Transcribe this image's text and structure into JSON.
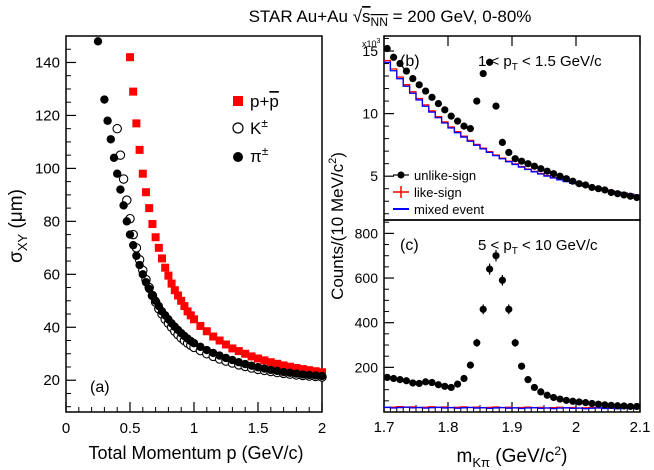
{
  "figure": {
    "title": "STAR  Au+Au √s_NN = 200 GeV, 0-80%",
    "title_parts": {
      "prefix": "STAR  Au+Au ",
      "sqrt": "s",
      "sub": "NN",
      "suffix": " = 200 GeV, 0-80%"
    }
  },
  "chart_data": [
    {
      "panel": "(a)",
      "type": "scatter",
      "xlabel": "Total Momentum p (GeV/c)",
      "ylabel": "σ_XY (μm)",
      "xlim": [
        0,
        2
      ],
      "ylim": [
        8,
        150
      ],
      "xticks": [
        "0",
        "0.5",
        "1",
        "1.5",
        "2"
      ],
      "yticks": [
        "20",
        "40",
        "60",
        "80",
        "100",
        "120",
        "140"
      ],
      "legend": [
        "p+p̄",
        "K±",
        "π±"
      ],
      "legend_position": "top-right",
      "series": [
        {
          "name": "p+p̄",
          "marker": "filled-square",
          "color": "#ff0000",
          "x": [
            0.5,
            0.525,
            0.55,
            0.575,
            0.6,
            0.625,
            0.65,
            0.675,
            0.7,
            0.725,
            0.75,
            0.775,
            0.8,
            0.825,
            0.85,
            0.875,
            0.9,
            0.925,
            0.95,
            0.975,
            1.0,
            1.05,
            1.1,
            1.15,
            1.2,
            1.25,
            1.3,
            1.35,
            1.4,
            1.45,
            1.5,
            1.55,
            1.6,
            1.65,
            1.7,
            1.75,
            1.8,
            1.85,
            1.9,
            1.95,
            2.0
          ],
          "y": [
            142,
            129,
            117,
            107,
            98,
            91,
            85,
            79,
            74,
            70,
            66,
            62.5,
            59.5,
            56.5,
            54,
            52,
            50,
            48,
            46,
            44.5,
            43,
            40.5,
            38.5,
            36.5,
            35,
            33.5,
            32,
            31,
            30,
            29,
            28.2,
            27.5,
            26.8,
            26.2,
            25.6,
            25.1,
            24.6,
            24.2,
            23.8,
            23.4,
            23
          ]
        },
        {
          "name": "K±",
          "marker": "open-circle",
          "color": "#000000",
          "x": [
            0.4,
            0.425,
            0.45,
            0.475,
            0.5,
            0.525,
            0.55,
            0.575,
            0.6,
            0.625,
            0.65,
            0.675,
            0.7,
            0.725,
            0.75,
            0.775,
            0.8,
            0.825,
            0.85,
            0.875,
            0.9,
            0.925,
            0.95,
            0.975,
            1.0,
            1.05,
            1.1,
            1.15,
            1.2,
            1.25,
            1.3,
            1.35,
            1.4,
            1.45,
            1.5,
            1.55,
            1.6,
            1.65,
            1.7,
            1.75,
            1.8,
            1.85,
            1.9,
            1.95,
            2.0
          ],
          "y": [
            115,
            105,
            96,
            88,
            81,
            75,
            70,
            65.5,
            61.5,
            58,
            55,
            52,
            49.5,
            47,
            45,
            43,
            41.5,
            40,
            38.5,
            37.2,
            36,
            35,
            34,
            33.2,
            32.4,
            31.2,
            30,
            29,
            28,
            27.2,
            26.5,
            25.8,
            25.2,
            24.6,
            24.1,
            23.7,
            23.3,
            22.9,
            22.6,
            22.3,
            22,
            21.8,
            21.6,
            21.4,
            21.2
          ]
        },
        {
          "name": "π±",
          "marker": "filled-circle",
          "color": "#000000",
          "x": [
            0.25,
            0.3,
            0.325,
            0.35,
            0.375,
            0.4,
            0.425,
            0.45,
            0.475,
            0.5,
            0.525,
            0.55,
            0.575,
            0.6,
            0.625,
            0.65,
            0.675,
            0.7,
            0.725,
            0.75,
            0.775,
            0.8,
            0.825,
            0.85,
            0.875,
            0.9,
            0.925,
            0.95,
            0.975,
            1.0,
            1.05,
            1.1,
            1.15,
            1.2,
            1.25,
            1.3,
            1.35,
            1.4,
            1.45,
            1.5,
            1.55,
            1.6,
            1.65,
            1.7,
            1.75,
            1.8,
            1.85,
            1.9,
            1.95,
            2.0
          ],
          "y": [
            148,
            126,
            118,
            111,
            104,
            98,
            92,
            86,
            80,
            75,
            71,
            67,
            63.5,
            60,
            57,
            54.5,
            52,
            50,
            48,
            46,
            44.5,
            43,
            41.5,
            40.2,
            39,
            37.8,
            36.7,
            35.7,
            34.8,
            34,
            32.6,
            31.4,
            30.3,
            29.3,
            28.4,
            27.6,
            26.8,
            26.1,
            25.5,
            24.9,
            24.4,
            23.9,
            23.5,
            23.1,
            22.8,
            22.5,
            22.2,
            22,
            21.8,
            21.6
          ]
        }
      ]
    },
    {
      "panel": "(b)",
      "type": "scatter",
      "annotation": "1 < p_T < 1.5 GeV/c",
      "y_multiplier": "x10^3",
      "ylabel": "Counts/(10 MeV/c²)",
      "xlim": [
        1.7,
        2.1
      ],
      "ylim": [
        1.5,
        16.2
      ],
      "yticks": [
        "5",
        "10",
        "15"
      ],
      "legend": [
        "unlike-sign",
        "like-sign",
        "mixed event"
      ],
      "legend_position": "bottom-left",
      "series": [
        {
          "name": "unlike-sign",
          "marker": "filled-circle",
          "color": "#000000",
          "x": [
            1.705,
            1.715,
            1.725,
            1.735,
            1.745,
            1.755,
            1.765,
            1.775,
            1.785,
            1.795,
            1.805,
            1.815,
            1.825,
            1.835,
            1.845,
            1.855,
            1.865,
            1.875,
            1.885,
            1.895,
            1.905,
            1.915,
            1.925,
            1.935,
            1.945,
            1.955,
            1.965,
            1.975,
            1.985,
            1.995,
            2.005,
            2.015,
            2.025,
            2.035,
            2.045,
            2.055,
            2.065,
            2.075,
            2.085,
            2.095
          ],
          "y": [
            15.2,
            14.5,
            14.0,
            13.4,
            12.8,
            12.3,
            11.8,
            11.3,
            10.8,
            10.3,
            9.8,
            9.4,
            9.0,
            8.8,
            11.0,
            13.2,
            14.1,
            10.6,
            7.7,
            6.9,
            6.4,
            6.2,
            6.0,
            5.8,
            5.6,
            5.4,
            5.2,
            5.0,
            4.8,
            4.6,
            4.4,
            4.3,
            4.1,
            4.0,
            3.9,
            3.7,
            3.6,
            3.5,
            3.4,
            3.3
          ]
        },
        {
          "name": "like-sign",
          "marker": "step",
          "color": "#ff0000",
          "x": [
            1.7,
            2.1
          ],
          "y": [
            14.6,
            3.2
          ]
        },
        {
          "name": "mixed event",
          "marker": "step",
          "color": "#0000ff",
          "x": [
            1.7,
            2.1
          ],
          "y": [
            14.3,
            3.2
          ]
        }
      ]
    },
    {
      "panel": "(c)",
      "type": "scatter",
      "annotation": "5 < p_T < 10 GeV/c",
      "xlabel": "m_Kπ (GeV/c²)",
      "xlim": [
        1.7,
        2.1
      ],
      "ylim": [
        0,
        860
      ],
      "xticks": [
        "1.7",
        "1.8",
        "1.9",
        "2",
        "2.1"
      ],
      "yticks": [
        "200",
        "400",
        "600",
        "800"
      ],
      "series": [
        {
          "name": "unlike-sign",
          "marker": "filled-circle",
          "color": "#000000",
          "x": [
            1.705,
            1.715,
            1.725,
            1.735,
            1.745,
            1.755,
            1.765,
            1.775,
            1.785,
            1.795,
            1.805,
            1.815,
            1.825,
            1.835,
            1.845,
            1.855,
            1.865,
            1.875,
            1.885,
            1.895,
            1.905,
            1.915,
            1.925,
            1.935,
            1.945,
            1.955,
            1.965,
            1.975,
            1.985,
            1.995,
            2.005,
            2.015,
            2.025,
            2.035,
            2.045,
            2.055,
            2.065,
            2.075,
            2.085,
            2.095
          ],
          "y": [
            155,
            150,
            145,
            140,
            130,
            128,
            135,
            132,
            122,
            115,
            110,
            125,
            150,
            210,
            310,
            460,
            640,
            700,
            590,
            460,
            310,
            205,
            145,
            110,
            90,
            75,
            65,
            58,
            52,
            48,
            45,
            42,
            38,
            35,
            32,
            30,
            28,
            27,
            25,
            25
          ],
          "yerr": [
            10,
            10,
            10,
            10,
            10,
            10,
            10,
            10,
            10,
            10,
            10,
            10,
            12,
            14,
            18,
            22,
            25,
            26,
            24,
            22,
            18,
            14,
            12,
            10,
            10,
            9,
            8,
            8,
            8,
            7,
            7,
            7,
            6,
            6,
            6,
            6,
            5,
            5,
            5,
            5
          ]
        },
        {
          "name": "like-sign",
          "marker": "step",
          "color": "#ff0000",
          "x": [
            1.7,
            2.1
          ],
          "y": [
            22,
            18
          ]
        },
        {
          "name": "mixed event",
          "marker": "step",
          "color": "#0000ff",
          "x": [
            1.7,
            2.1
          ],
          "y": [
            20,
            16
          ]
        }
      ]
    }
  ]
}
